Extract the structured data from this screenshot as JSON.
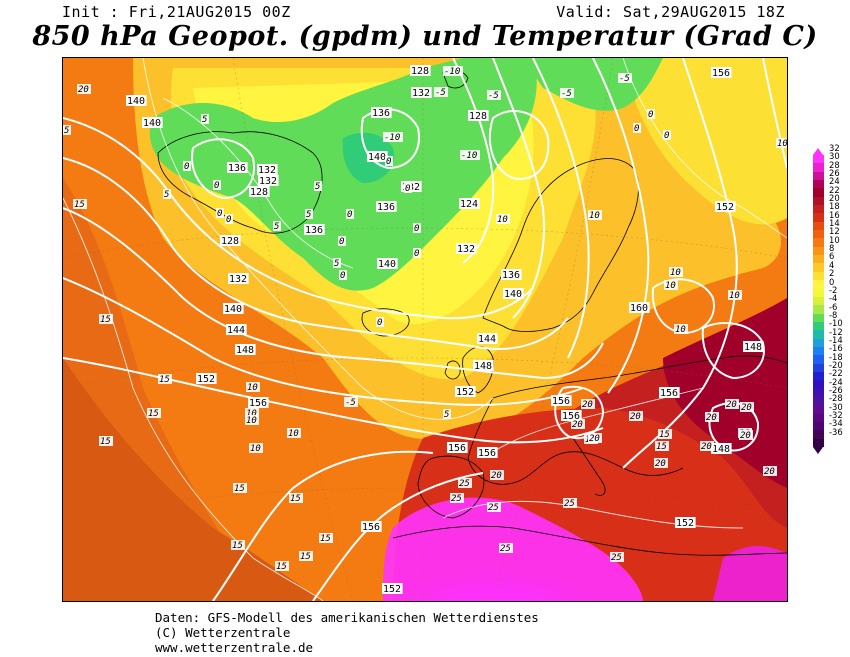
{
  "header": {
    "init": "Init : Fri,21AUG2015 00Z",
    "valid": "Valid: Sat,29AUG2015 18Z",
    "title": "850 hPa Geopot. (gpdm) und Temperatur (Grad C)"
  },
  "footer": {
    "line1": "Daten: GFS-Modell des amerikanischen Wetterdienstes",
    "line2": "(C) Wetterzentrale",
    "line3": "www.wetterzentrale.de"
  },
  "colorbar": {
    "labels": [
      "32",
      "30",
      "28",
      "26",
      "24",
      "22",
      "20",
      "18",
      "16",
      "14",
      "12",
      "10",
      "8",
      "6",
      "4",
      "2",
      "0",
      "-2",
      "-4",
      "-6",
      "-8",
      "-10",
      "-12",
      "-14",
      "-16",
      "-18",
      "-20",
      "-22",
      "-24",
      "-26",
      "-28",
      "-30",
      "-32",
      "-34",
      "-36"
    ],
    "colors": [
      "#ff33ff",
      "#ee22cc",
      "#cc1199",
      "#b3005a",
      "#a0002a",
      "#b0102a",
      "#c42020",
      "#d83018",
      "#e84a10",
      "#f06010",
      "#f47a12",
      "#f89418",
      "#fbae20",
      "#fdc828",
      "#fee034",
      "#fff440",
      "#f0f838",
      "#d6f03c",
      "#a8e848",
      "#60dc58",
      "#30cc78",
      "#20bca8",
      "#20a0d8",
      "#2080f0",
      "#2060f0",
      "#2040e0",
      "#2020d0",
      "#3010c0",
      "#4010b0",
      "#5010a0",
      "#600c90",
      "#5a0880",
      "#500670",
      "#440458",
      "#330044"
    ]
  },
  "map": {
    "geopotential_labels": [
      "140",
      "140",
      "136",
      "132",
      "128",
      "128",
      "132",
      "140",
      "144",
      "148",
      "152",
      "156",
      "156",
      "152",
      "128",
      "132",
      "136",
      "132",
      "136",
      "140",
      "140",
      "136",
      "132",
      "128",
      "124",
      "132",
      "136",
      "140",
      "144",
      "148",
      "152",
      "156",
      "156",
      "156",
      "156",
      "160",
      "156",
      "152",
      "148",
      "148",
      "152",
      "156"
    ],
    "temperature_labels": [
      "20",
      "5",
      "15",
      "15",
      "15",
      "15",
      "15",
      "15",
      "15",
      "15",
      "15",
      "15",
      "15",
      "10",
      "10",
      "10",
      "10",
      "10",
      "5",
      "5",
      "5",
      "5",
      "5",
      "5",
      "0",
      "0",
      "0",
      "0",
      "0",
      "0",
      "0",
      "0",
      "0",
      "0",
      "0",
      "0",
      "0",
      "0",
      "0",
      "-5",
      "-5",
      "-10",
      "-10",
      "-10",
      "-5",
      "-5",
      "-5",
      "5",
      "10",
      "10",
      "10",
      "10",
      "15",
      "10",
      "10",
      "10",
      "20",
      "20",
      "20",
      "20",
      "20",
      "20",
      "20",
      "25",
      "20",
      "25",
      "25",
      "25",
      "25",
      "20",
      "20",
      "20",
      "25",
      "20",
      "15",
      "15",
      "20"
    ]
  }
}
